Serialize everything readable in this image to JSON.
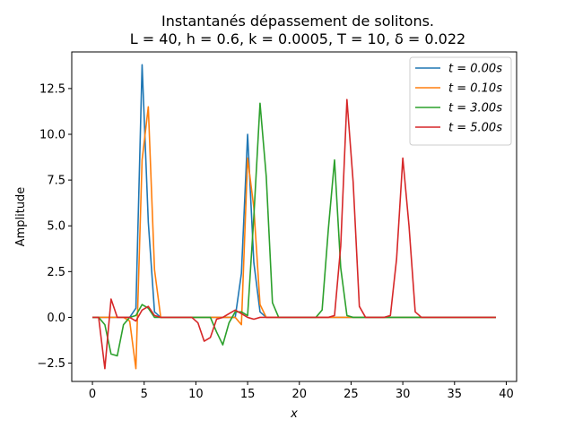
{
  "chart_data": {
    "type": "line",
    "title": "Instantanés dépassement de solitons.",
    "subtitle": "L = 40, h = 0.6, k = 0.0005, T = 10, δ = 0.022",
    "xlabel": "x",
    "ylabel": "Amplitude",
    "xlim": [
      -2,
      41
    ],
    "ylim": [
      -3.5,
      14.5
    ],
    "xticks": [
      "0",
      "5",
      "10",
      "15",
      "20",
      "25",
      "30",
      "35",
      "40"
    ],
    "yticks": [
      "−2.5",
      "0.0",
      "2.5",
      "5.0",
      "7.5",
      "10.0",
      "12.5"
    ],
    "grid": false,
    "legend_position": "top-right",
    "x": [
      0,
      0.6,
      1.2,
      1.8,
      2.4,
      3.0,
      3.6,
      4.2,
      4.8,
      5.4,
      6.0,
      6.6,
      7.2,
      7.8,
      8.4,
      9.0,
      9.6,
      10.2,
      10.8,
      11.4,
      12.0,
      12.6,
      13.2,
      13.8,
      14.4,
      15.0,
      15.6,
      16.2,
      16.8,
      17.4,
      18.0,
      18.6,
      19.2,
      19.8,
      20.4,
      21.0,
      21.6,
      22.2,
      22.8,
      23.4,
      24.0,
      24.6,
      25.2,
      25.8,
      26.4,
      27.0,
      27.6,
      28.2,
      28.8,
      29.4,
      30.0,
      30.6,
      31.2,
      31.8,
      32.4,
      33.0,
      33.6,
      34.2,
      34.8,
      35.4,
      36.0,
      36.6,
      37.2,
      37.8,
      38.4,
      39.0
    ],
    "series": [
      {
        "name": "t = 0.00s",
        "color": "#1f77b4",
        "values": [
          0,
          0,
          0,
          0,
          0,
          0,
          0,
          0.5,
          13.8,
          5.2,
          0.3,
          0,
          0,
          0,
          0,
          0,
          0,
          0,
          0,
          0,
          0,
          0,
          0,
          0,
          2.4,
          10.0,
          3.0,
          0.3,
          0,
          0,
          0,
          0,
          0,
          0,
          0,
          0,
          0,
          0,
          0,
          0,
          0,
          0,
          0,
          0,
          0,
          0,
          0,
          0,
          0,
          0,
          0,
          0,
          0,
          0,
          0,
          0,
          0,
          0,
          0,
          0,
          0,
          0,
          0,
          0,
          0,
          0
        ]
      },
      {
        "name": "t = 0.10s",
        "color": "#ff7f0e",
        "values": [
          0,
          0,
          0,
          0,
          0,
          0,
          -0.2,
          -2.8,
          8.6,
          11.5,
          2.6,
          0,
          0,
          0,
          0,
          0,
          0,
          0,
          0,
          0,
          0,
          0,
          0,
          0,
          -0.4,
          8.7,
          6.0,
          0.7,
          0,
          0,
          0,
          0,
          0,
          0,
          0,
          0,
          0,
          0,
          0,
          0,
          0,
          0,
          0,
          0,
          0,
          0,
          0,
          0,
          0,
          0,
          0,
          0,
          0,
          0,
          0,
          0,
          0,
          0,
          0,
          0,
          0,
          0,
          0,
          0,
          0,
          0
        ]
      },
      {
        "name": "t = 3.00s",
        "color": "#2ca02c",
        "values": [
          0,
          0,
          -0.4,
          -2.0,
          -2.1,
          -0.4,
          0,
          0.1,
          0.7,
          0.5,
          0,
          0,
          0,
          0,
          0,
          0,
          0,
          0,
          0,
          0,
          -0.8,
          -1.5,
          -0.3,
          0.3,
          0.3,
          0.1,
          5.5,
          11.7,
          7.7,
          0.8,
          0,
          0,
          0,
          0,
          0,
          0,
          0,
          0.4,
          4.8,
          8.6,
          2.7,
          0.1,
          0,
          0,
          0,
          0,
          0,
          0,
          0,
          0,
          0,
          0,
          0,
          0,
          0,
          0,
          0,
          0,
          0,
          0,
          0,
          0,
          0,
          0,
          0,
          0
        ]
      },
      {
        "name": "t = 5.00s",
        "color": "#d62728",
        "values": [
          0,
          0,
          -2.8,
          1.0,
          0,
          0,
          0,
          -0.2,
          0.4,
          0.6,
          0.1,
          0,
          0,
          0,
          0,
          0,
          0,
          -0.3,
          -1.3,
          -1.1,
          -0.1,
          0,
          0.2,
          0.4,
          0.2,
          0,
          -0.1,
          0,
          0,
          0,
          0,
          0,
          0,
          0,
          0,
          0,
          0,
          0,
          0,
          0.1,
          3.9,
          11.9,
          7.4,
          0.6,
          0,
          0,
          0,
          0,
          0.1,
          3.2,
          8.7,
          5.0,
          0.3,
          0,
          0,
          0,
          0,
          0,
          0,
          0,
          0,
          0,
          0,
          0,
          0,
          0
        ]
      }
    ]
  }
}
